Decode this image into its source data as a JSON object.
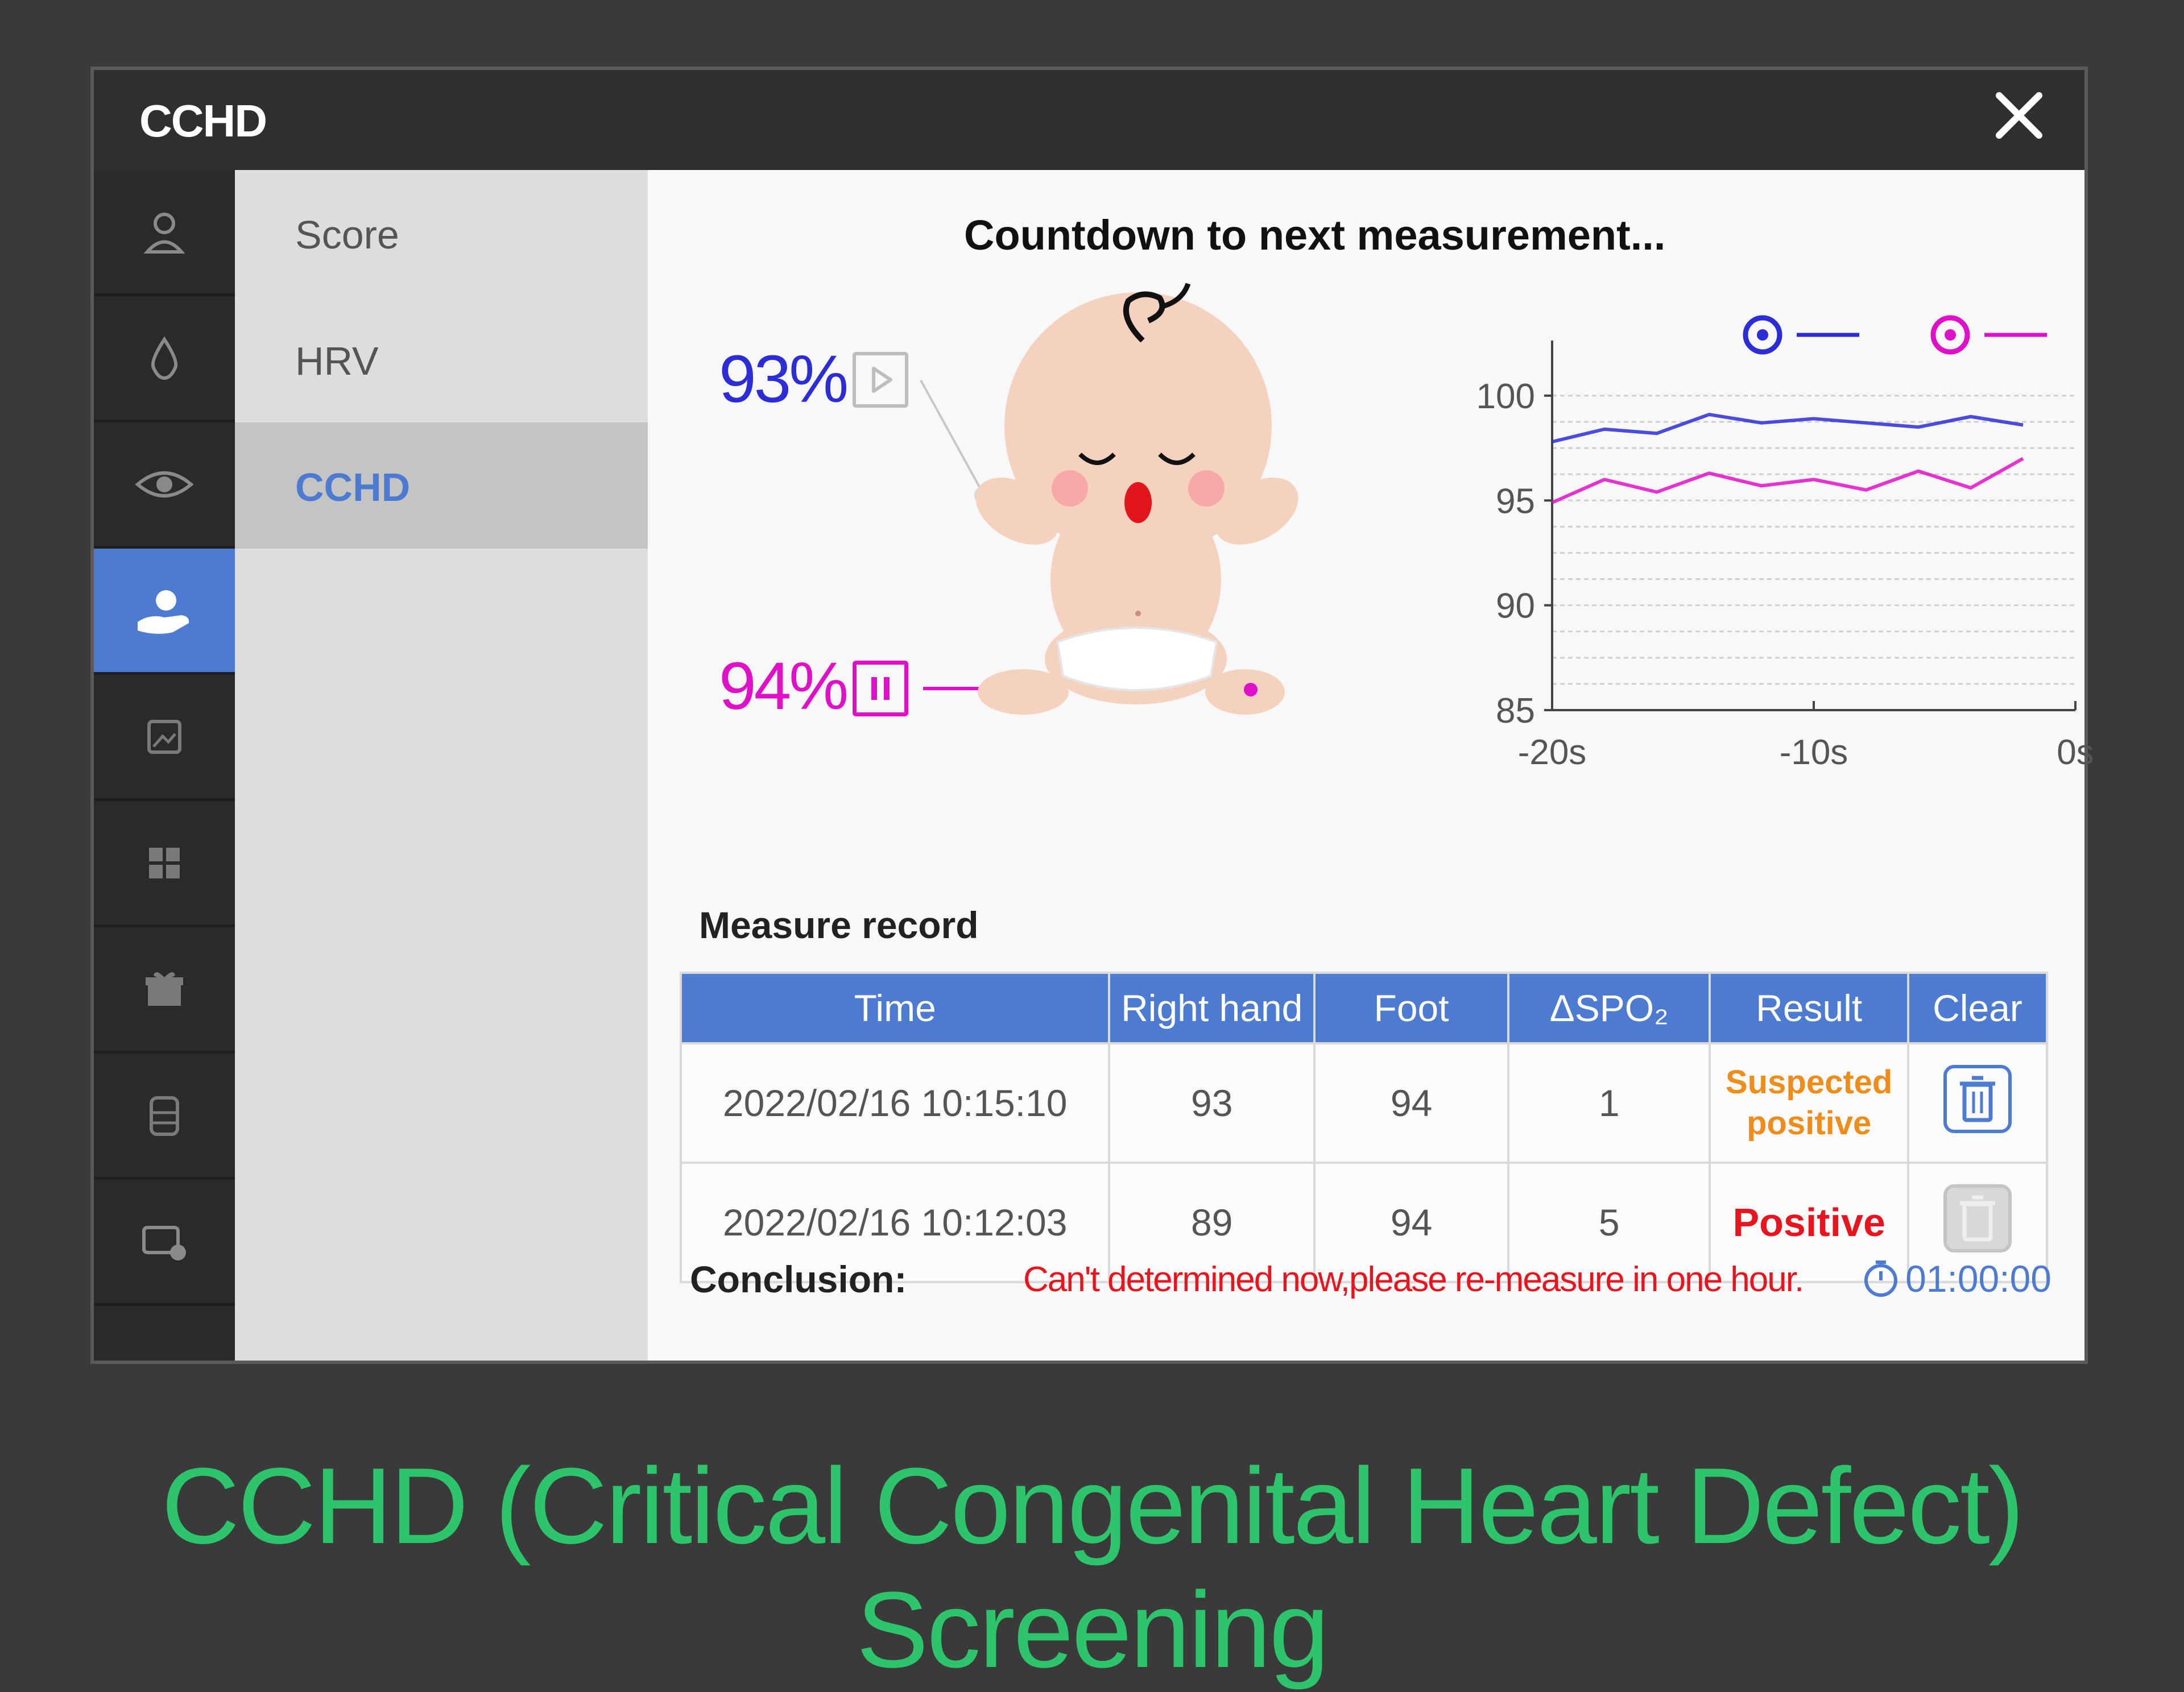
{
  "window": {
    "title": "CCHD",
    "close_icon": "close-icon"
  },
  "iconbar": {
    "items": [
      {
        "name": "user-icon",
        "active": false
      },
      {
        "name": "drop-icon",
        "active": false
      },
      {
        "name": "eye-icon",
        "active": false
      },
      {
        "name": "baby-hand-icon",
        "active": true
      },
      {
        "name": "image-icon",
        "active": false
      },
      {
        "name": "grid-icon",
        "active": false
      },
      {
        "name": "gift-icon",
        "active": false
      },
      {
        "name": "storage-icon",
        "active": false
      },
      {
        "name": "device-icon",
        "active": false
      }
    ]
  },
  "menu": {
    "items": [
      {
        "label": "Score",
        "active": false
      },
      {
        "label": "HRV",
        "active": false
      },
      {
        "label": "CCHD",
        "active": true
      }
    ]
  },
  "main": {
    "countdown": "Countdown to next measurement...",
    "right_hand_spo2": "93%",
    "foot_spo2": "94%",
    "right_hand_color": "#2d2dd8",
    "foot_color": "#e010c8"
  },
  "chart_data": {
    "type": "line",
    "x": [
      -20,
      -18,
      -16,
      -14,
      -12,
      -10,
      -8,
      -6,
      -4,
      -2
    ],
    "series": [
      {
        "values": [
          97.8,
          98.4,
          98.2,
          99.1,
          98.7,
          98.9,
          98.7,
          98.5,
          99.0,
          98.6
        ]
      },
      {
        "values": [
          94.9,
          96.0,
          95.4,
          96.3,
          95.7,
          96.0,
          95.5,
          96.4,
          95.6,
          97.0
        ]
      }
    ],
    "x_tick_labels": [
      "-20s",
      "-10s",
      "0s"
    ],
    "y_ticks": [
      85,
      90,
      95,
      100
    ],
    "xlim": [
      -20,
      0
    ],
    "ylim": [
      85,
      101
    ],
    "grid": true,
    "legend_placement": "top-right",
    "legend_icons": [
      "right-hand-icon",
      "foot-icon"
    ]
  },
  "record": {
    "label": "Measure record",
    "columns": [
      "Time",
      "Right hand",
      "Foot",
      "ΔSPO₂",
      "Result",
      "Clear"
    ],
    "rows": [
      {
        "time": "2022/02/16 10:15:10",
        "right_hand": "93",
        "foot": "94",
        "delta": "1",
        "result": "Suspected positive",
        "result_color": "#f08c1a",
        "clear_enabled": true
      },
      {
        "time": "2022/02/16 10:12:03",
        "right_hand": "89",
        "foot": "94",
        "delta": "5",
        "result": "Positive",
        "result_color": "#e8141e",
        "clear_enabled": false
      }
    ]
  },
  "conclusion": {
    "label": "Conclusion:",
    "text": "Can't determined now,please re-measure in one hour.",
    "timer": "01:00:00",
    "timer_icon": "timer-icon"
  },
  "caption": "CCHD (Critical Congenital Heart Defect) Screening",
  "colors": {
    "accent": "#4c7bd1",
    "caption": "#2ec46b"
  }
}
